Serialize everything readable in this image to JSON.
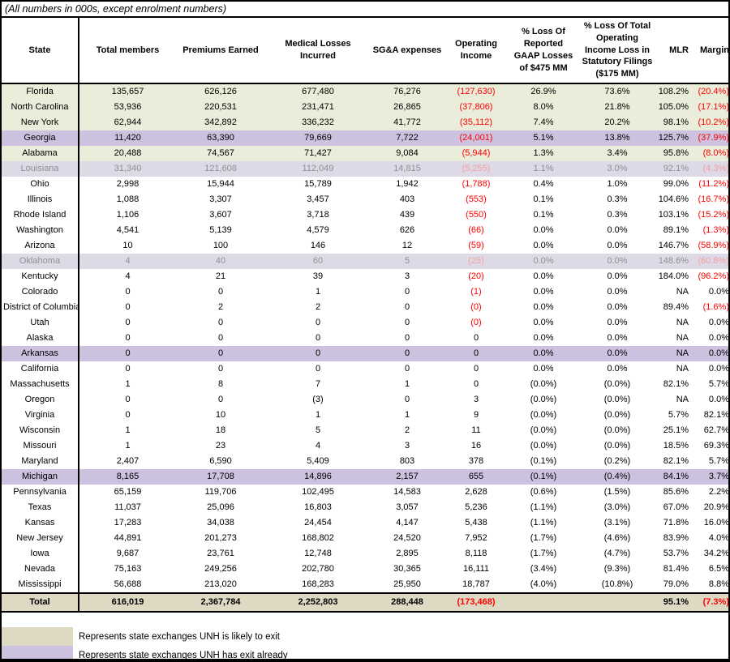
{
  "title": "(All numbers in 000s, except enrolment numbers)",
  "table": {
    "columns": [
      {
        "key": "state",
        "label": "State"
      },
      {
        "key": "total_members",
        "label": "Total members"
      },
      {
        "key": "premiums_earned",
        "label": "Premiums Earned"
      },
      {
        "key": "medical_losses_incurred",
        "label": "Medical Losses Incurred"
      },
      {
        "key": "sga_expenses",
        "label": "SG&A expenses"
      },
      {
        "key": "operating_income",
        "label": "Operating Income"
      },
      {
        "key": "pct_loss_reported_gaap",
        "label": "% Loss Of Reported GAAP Losses of $475 MM"
      },
      {
        "key": "pct_loss_total_statutory",
        "label": "% Loss Of Total Operating Income Loss in Statutory Filings ($175 MM)"
      },
      {
        "key": "mlr",
        "label": "MLR"
      },
      {
        "key": "margin",
        "label": "Margin"
      }
    ],
    "rows": [
      {
        "style": "likely",
        "cells": [
          "Florida",
          "135,657",
          "626,126",
          "677,480",
          "76,276",
          "(127,630)",
          "26.9%",
          "73.6%",
          "108.2%",
          "(20.4%)"
        ]
      },
      {
        "style": "likely",
        "cells": [
          "North Carolina",
          "53,936",
          "220,531",
          "231,471",
          "26,865",
          "(37,806)",
          "8.0%",
          "21.8%",
          "105.0%",
          "(17.1%)"
        ]
      },
      {
        "style": "likely",
        "cells": [
          "New York",
          "62,944",
          "342,892",
          "336,232",
          "41,772",
          "(35,112)",
          "7.4%",
          "20.2%",
          "98.1%",
          "(10.2%)"
        ]
      },
      {
        "style": "exited",
        "cells": [
          "Georgia",
          "11,420",
          "63,390",
          "79,669",
          "7,722",
          "(24,001)",
          "5.1%",
          "13.8%",
          "125.7%",
          "(37.9%)"
        ]
      },
      {
        "style": "likely",
        "cells": [
          "Alabama",
          "20,488",
          "74,567",
          "71,427",
          "9,084",
          "(5,944)",
          "1.3%",
          "3.4%",
          "95.8%",
          "(8.0%)"
        ]
      },
      {
        "style": "exited-dim",
        "cells": [
          "Louisiana",
          "31,340",
          "121,608",
          "112,049",
          "14,815",
          "(5,255)",
          "1.1%",
          "3.0%",
          "92.1%",
          "(4.3%)"
        ]
      },
      {
        "style": "plain",
        "cells": [
          "Ohio",
          "2,998",
          "15,944",
          "15,789",
          "1,942",
          "(1,788)",
          "0.4%",
          "1.0%",
          "99.0%",
          "(11.2%)"
        ]
      },
      {
        "style": "plain",
        "cells": [
          "Illinois",
          "1,088",
          "3,307",
          "3,457",
          "403",
          "(553)",
          "0.1%",
          "0.3%",
          "104.6%",
          "(16.7%)"
        ]
      },
      {
        "style": "plain",
        "cells": [
          "Rhode Island",
          "1,106",
          "3,607",
          "3,718",
          "439",
          "(550)",
          "0.1%",
          "0.3%",
          "103.1%",
          "(15.2%)"
        ]
      },
      {
        "style": "plain",
        "cells": [
          "Washington",
          "4,541",
          "5,139",
          "4,579",
          "626",
          "(66)",
          "0.0%",
          "0.0%",
          "89.1%",
          "(1.3%)"
        ]
      },
      {
        "style": "plain",
        "cells": [
          "Arizona",
          "10",
          "100",
          "146",
          "12",
          "(59)",
          "0.0%",
          "0.0%",
          "146.7%",
          "(58.9%)"
        ]
      },
      {
        "style": "exited-dim",
        "cells": [
          "Oklahoma",
          "4",
          "40",
          "60",
          "5",
          "(25)",
          "0.0%",
          "0.0%",
          "148.6%",
          "(60.8%)"
        ]
      },
      {
        "style": "plain",
        "cells": [
          "Kentucky",
          "4",
          "21",
          "39",
          "3",
          "(20)",
          "0.0%",
          "0.0%",
          "184.0%",
          "(96.2%)"
        ]
      },
      {
        "style": "plain",
        "cells": [
          "Colorado",
          "0",
          "0",
          "1",
          "0",
          "(1)",
          "0.0%",
          "0.0%",
          "NA",
          "0.0%"
        ]
      },
      {
        "style": "plain",
        "cells": [
          "District of Columbia",
          "0",
          "2",
          "2",
          "0",
          "(0)",
          "0.0%",
          "0.0%",
          "89.4%",
          "(1.6%)"
        ]
      },
      {
        "style": "plain",
        "cells": [
          "Utah",
          "0",
          "0",
          "0",
          "0",
          "(0)",
          "0.0%",
          "0.0%",
          "NA",
          "0.0%"
        ]
      },
      {
        "style": "plain",
        "cells": [
          "Alaska",
          "0",
          "0",
          "0",
          "0",
          "0",
          "0.0%",
          "0.0%",
          "NA",
          "0.0%"
        ]
      },
      {
        "style": "exited",
        "cells": [
          "Arkansas",
          "0",
          "0",
          "0",
          "0",
          "0",
          "0.0%",
          "0.0%",
          "NA",
          "0.0%"
        ]
      },
      {
        "style": "plain",
        "cells": [
          "California",
          "0",
          "0",
          "0",
          "0",
          "0",
          "0.0%",
          "0.0%",
          "NA",
          "0.0%"
        ]
      },
      {
        "style": "plain",
        "cells": [
          "Massachusetts",
          "1",
          "8",
          "7",
          "1",
          "0",
          "(0.0%)",
          "(0.0%)",
          "82.1%",
          "5.7%"
        ]
      },
      {
        "style": "plain",
        "cells": [
          "Oregon",
          "0",
          "0",
          "(3)",
          "0",
          "3",
          "(0.0%)",
          "(0.0%)",
          "NA",
          "0.0%"
        ]
      },
      {
        "style": "plain",
        "cells": [
          "Virginia",
          "0",
          "10",
          "1",
          "1",
          "9",
          "(0.0%)",
          "(0.0%)",
          "5.7%",
          "82.1%"
        ]
      },
      {
        "style": "plain",
        "cells": [
          "Wisconsin",
          "1",
          "18",
          "5",
          "2",
          "11",
          "(0.0%)",
          "(0.0%)",
          "25.1%",
          "62.7%"
        ]
      },
      {
        "style": "plain",
        "cells": [
          "Missouri",
          "1",
          "23",
          "4",
          "3",
          "16",
          "(0.0%)",
          "(0.0%)",
          "18.5%",
          "69.3%"
        ]
      },
      {
        "style": "plain",
        "cells": [
          "Maryland",
          "2,407",
          "6,590",
          "5,409",
          "803",
          "378",
          "(0.1%)",
          "(0.2%)",
          "82.1%",
          "5.7%"
        ]
      },
      {
        "style": "exited",
        "cells": [
          "Michigan",
          "8,165",
          "17,708",
          "14,896",
          "2,157",
          "655",
          "(0.1%)",
          "(0.4%)",
          "84.1%",
          "3.7%"
        ]
      },
      {
        "style": "plain",
        "cells": [
          "Pennsylvania",
          "65,159",
          "119,706",
          "102,495",
          "14,583",
          "2,628",
          "(0.6%)",
          "(1.5%)",
          "85.6%",
          "2.2%"
        ]
      },
      {
        "style": "plain",
        "cells": [
          "Texas",
          "11,037",
          "25,096",
          "16,803",
          "3,057",
          "5,236",
          "(1.1%)",
          "(3.0%)",
          "67.0%",
          "20.9%"
        ]
      },
      {
        "style": "plain",
        "cells": [
          "Kansas",
          "17,283",
          "34,038",
          "24,454",
          "4,147",
          "5,438",
          "(1.1%)",
          "(3.1%)",
          "71.8%",
          "16.0%"
        ]
      },
      {
        "style": "plain",
        "cells": [
          "New Jersey",
          "44,891",
          "201,273",
          "168,802",
          "24,520",
          "7,952",
          "(1.7%)",
          "(4.6%)",
          "83.9%",
          "4.0%"
        ]
      },
      {
        "style": "plain",
        "cells": [
          "Iowa",
          "9,687",
          "23,761",
          "12,748",
          "2,895",
          "8,118",
          "(1.7%)",
          "(4.7%)",
          "53.7%",
          "34.2%"
        ]
      },
      {
        "style": "plain",
        "cells": [
          "Nevada",
          "75,163",
          "249,256",
          "202,780",
          "30,365",
          "16,111",
          "(3.4%)",
          "(9.3%)",
          "81.4%",
          "6.5%"
        ]
      },
      {
        "style": "plain",
        "cells": [
          "Mississippi",
          "56,688",
          "213,020",
          "168,283",
          "25,950",
          "18,787",
          "(4.0%)",
          "(10.8%)",
          "79.0%",
          "8.8%"
        ]
      }
    ],
    "total": {
      "style": "total",
      "cells": [
        "Total",
        "616,019",
        "2,367,784",
        "2,252,803",
        "288,448",
        "(173,468)",
        "",
        "",
        "95.1%",
        "(7.3%)"
      ]
    }
  },
  "legend": [
    {
      "label": "Represents state exchanges UNH is likely to exit",
      "color": "#ddd9c3"
    },
    {
      "label": "Represents state exchanges UNH has exit already",
      "color": "#ccc1df"
    }
  ],
  "colors": {
    "likely_exit_row": "#eaedd9",
    "exited_row": "#ccc1df",
    "exited_dim_row": "#ded9e7",
    "total_row": "#ddd9c3",
    "negative_red": "#ff0000",
    "dim_text": "#8f8f8f",
    "dim_negative": "#f2a0a0"
  }
}
